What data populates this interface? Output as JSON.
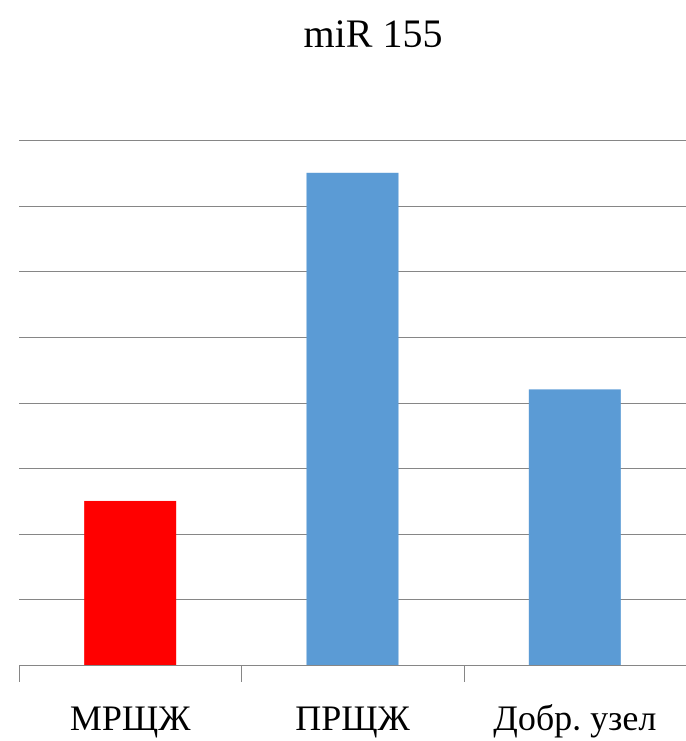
{
  "chart_data": {
    "type": "bar",
    "title": "miR 155",
    "categories": [
      "МРЩЖ",
      "ПРЩЖ",
      "Добр. узел"
    ],
    "values": [
      2.5,
      7.5,
      4.2
    ],
    "ylim": [
      0,
      8
    ],
    "ytick_step": 1,
    "grid": true,
    "legend": "none",
    "xlabel": "",
    "ylabel": "",
    "colors": [
      "#ff0000",
      "#5b9bd5",
      "#5b9bd5"
    ],
    "gridline_color": "#868686",
    "axis_color": "#868686"
  }
}
